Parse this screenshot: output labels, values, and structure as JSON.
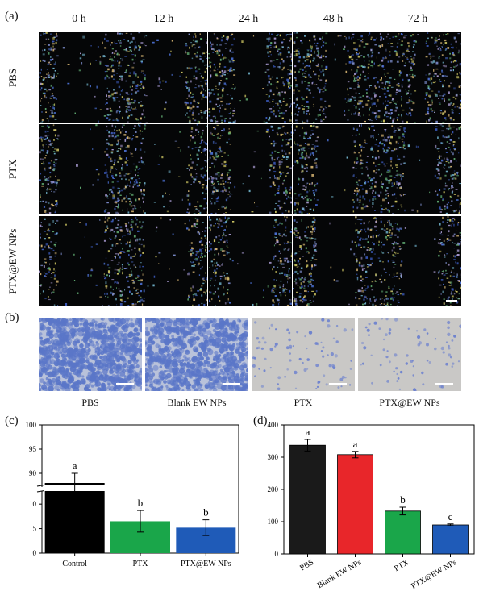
{
  "panels": {
    "a": "(a)",
    "b": "(b)",
    "c": "(c)",
    "d": "(d)"
  },
  "wound": {
    "times": [
      "0 h",
      "12 h",
      "24 h",
      "48 h",
      "72 h"
    ],
    "groups": [
      "PBS",
      "PTX",
      "PTX@EW NPs"
    ],
    "gap_fraction": [
      [
        0.55,
        0.46,
        0.36,
        0.22,
        0.12
      ],
      [
        0.55,
        0.5,
        0.46,
        0.42,
        0.36
      ],
      [
        0.55,
        0.52,
        0.5,
        0.47,
        0.44
      ]
    ]
  },
  "transwell": {
    "captions": [
      "PBS",
      "Blank EW NPs",
      "PTX",
      "PTX@EW NPs"
    ],
    "density": [
      0.85,
      0.75,
      0.06,
      0.05
    ]
  },
  "chart_data": [
    {
      "type": "bar",
      "panel": "(c)",
      "categories": [
        "Control",
        "PTX",
        "PTX@EW NPs"
      ],
      "values": [
        88,
        6.5,
        5.2
      ],
      "errors": [
        2,
        2.2,
        1.6
      ],
      "letters": [
        "a",
        "b",
        "b"
      ],
      "colors": [
        "#000000",
        "#1aa64a",
        "#1f5bb8"
      ],
      "axis_break": [
        12,
        88
      ],
      "yticks_lower": [
        0,
        5,
        10
      ],
      "yticks_upper": [
        90,
        95,
        100
      ],
      "ylim": [
        0,
        100
      ]
    },
    {
      "type": "bar",
      "panel": "(d)",
      "categories": [
        "PBS",
        "Blank EW NPs",
        "PTX",
        "PTX@EW NPs"
      ],
      "values": [
        337,
        308,
        133,
        90
      ],
      "errors": [
        18,
        10,
        12,
        3
      ],
      "letters": [
        "a",
        "a",
        "b",
        "c"
      ],
      "colors": [
        "#1a1a1a",
        "#e8262a",
        "#1aa64a",
        "#1f5bb8"
      ],
      "yticks": [
        0,
        100,
        200,
        300,
        400
      ],
      "ylim": [
        0,
        400
      ]
    }
  ]
}
